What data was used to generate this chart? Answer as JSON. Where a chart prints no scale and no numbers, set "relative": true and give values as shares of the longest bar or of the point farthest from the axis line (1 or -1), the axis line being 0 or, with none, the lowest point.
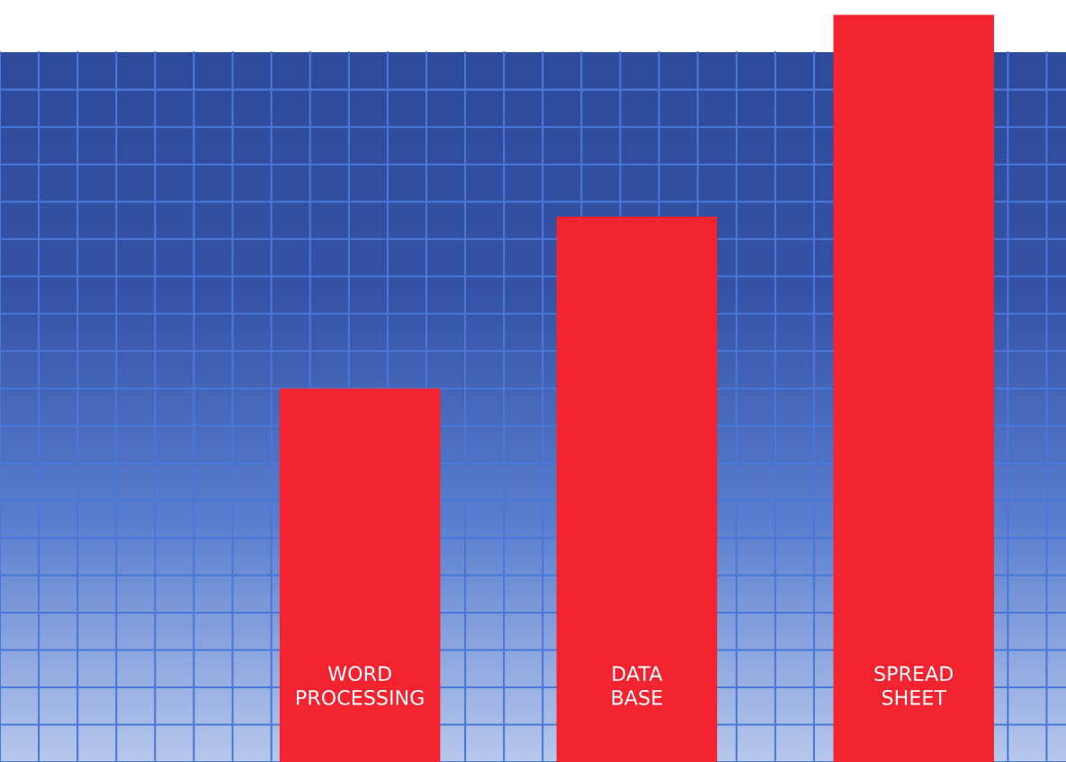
{
  "chart_data": {
    "type": "bar",
    "relative": true,
    "categories": [
      "WORD\nPROCESSING",
      "DATA\nBASE",
      "SPREAD\nSHEET"
    ],
    "values": [
      0.5,
      0.73,
      1.0
    ],
    "color": "#f42330"
  }
}
